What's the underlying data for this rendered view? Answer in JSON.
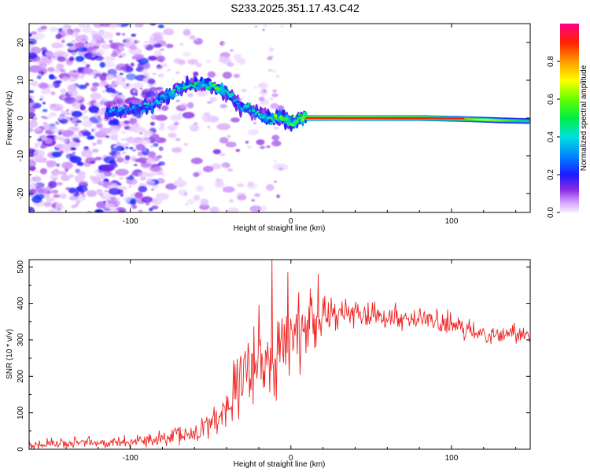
{
  "figure_title": "S233.2025.351.17.43.C42",
  "colors": {
    "background": "#ffffff",
    "snr_line": "#ee2222",
    "axis": "#000000"
  },
  "chart_data": [
    {
      "type": "heatmap",
      "title": "S233.2025.351.17.43.C42",
      "xlabel": "Height of straight line (km)",
      "ylabel": "Frequency (Hz)",
      "xlim": [
        -163,
        149
      ],
      "ylim": [
        -25,
        25
      ],
      "x_ticks": [
        -100,
        0,
        100
      ],
      "y_ticks": [
        -20,
        -10,
        0,
        10,
        20
      ],
      "colorbar": {
        "label": "Normalized spectral amplitude",
        "range": [
          0,
          1
        ],
        "ticks": [
          0,
          0.2,
          0.4,
          0.6,
          0.8
        ],
        "tick_labels": [
          "0.0",
          "0.2",
          "0.4",
          "0.6",
          "0.8"
        ],
        "colormap": "rainbow (white-violet-blue-cyan-green-yellow-orange-red-magenta)"
      },
      "ridge": {
        "description": "dominant frequency track vs height",
        "x": [
          -110,
          -95,
          -85,
          -75,
          -65,
          -55,
          -45,
          -38,
          -32,
          -25,
          -18,
          -12,
          -5,
          0,
          5,
          10,
          40,
          80,
          110,
          130,
          148
        ],
        "freq": [
          1.5,
          2.5,
          4.0,
          6.5,
          8.5,
          9.0,
          8.0,
          6.0,
          3.5,
          2.0,
          0.5,
          -0.5,
          0.0,
          -1.0,
          -0.5,
          0.0,
          0.0,
          0.0,
          -0.3,
          -0.6,
          -0.8
        ],
        "amplitude": [
          0.3,
          0.35,
          0.4,
          0.45,
          0.45,
          0.45,
          0.5,
          0.4,
          0.35,
          0.4,
          0.45,
          0.5,
          0.55,
          0.55,
          0.6,
          0.95,
          0.95,
          0.9,
          0.8,
          0.6,
          0.45
        ]
      },
      "noise_region": {
        "x_range": [
          -163,
          -80
        ],
        "description": "scattered low-amplitude speckle"
      }
    },
    {
      "type": "line",
      "xlabel": "Height of straight line (km)",
      "ylabel": "SNR (10 * v/v)",
      "xlim": [
        -163,
        149
      ],
      "ylim": [
        0,
        520
      ],
      "x_ticks": [
        -100,
        0,
        100
      ],
      "y_ticks": [
        0,
        100,
        200,
        300,
        400,
        500
      ],
      "series": [
        {
          "name": "SNR",
          "color": "#ee2222",
          "trend_x": [
            -163,
            -120,
            -80,
            -60,
            -45,
            -35,
            -25,
            -15,
            -10,
            0,
            10,
            18,
            30,
            50,
            70,
            90,
            110,
            130,
            149
          ],
          "trend_y": [
            15,
            18,
            25,
            45,
            90,
            160,
            220,
            250,
            270,
            310,
            340,
            360,
            375,
            375,
            360,
            350,
            325,
            315,
            320
          ],
          "noise_amplitude": [
            12,
            14,
            18,
            25,
            45,
            70,
            90,
            100,
            100,
            90,
            80,
            60,
            35,
            30,
            30,
            28,
            25,
            22,
            20
          ],
          "spikes": [
            {
              "x": -12,
              "y": 525
            },
            {
              "x": 17,
              "y": 480
            },
            {
              "x": -2,
              "y": 485
            },
            {
              "x": 5,
              "y": 430
            },
            {
              "x": -20,
              "y": 395
            },
            {
              "x": 12,
              "y": 440
            }
          ]
        }
      ]
    }
  ]
}
